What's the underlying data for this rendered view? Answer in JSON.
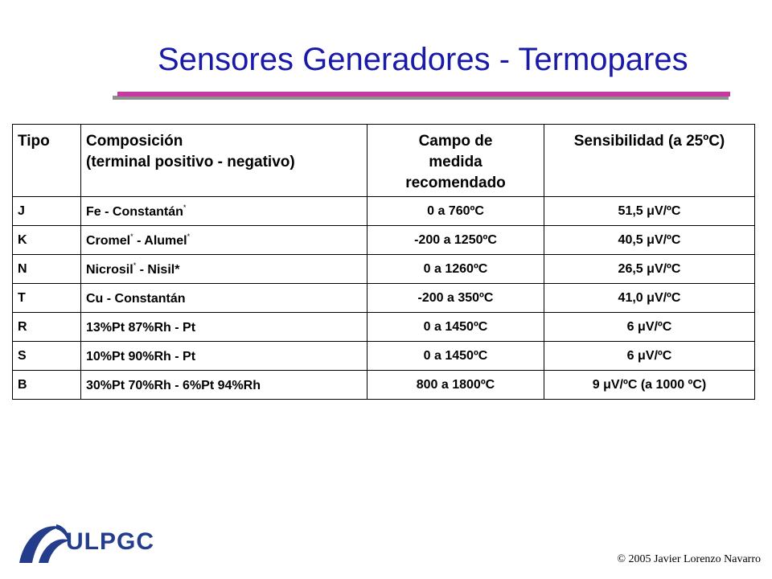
{
  "title": "Sensores Generadores - Termopares",
  "colors": {
    "title": "#1a1aa8",
    "underline": "#c63aa0",
    "underline_shadow": "#8f8f8f",
    "logo": "#233c8c"
  },
  "table": {
    "headers": {
      "tipo": "Tipo",
      "comp_line1": "Composición",
      "comp_line2": "(terminal positivo - negativo)",
      "campo_line1": "Campo de",
      "campo_line2": "medida",
      "campo_line3": "recomendado",
      "sens": "Sensibilidad (a 25ºC)"
    },
    "rows": [
      {
        "tipo": "J",
        "comp_a": "Fe - Constantán",
        "sup_a": "*",
        "comp_b": "",
        "sup_b": "",
        "comp_c": "",
        "campo": "0 a 760ºC",
        "sens_num": "51,5 ",
        "sens_mu": "μ",
        "sens_unit": "V/ºC",
        "sens_extra": ""
      },
      {
        "tipo": "K",
        "comp_a": "Cromel",
        "sup_a": "*",
        "comp_b": " - Alumel",
        "sup_b": "*",
        "comp_c": "",
        "campo": "-200 a 1250ºC",
        "sens_num": "40,5 ",
        "sens_mu": "μ",
        "sens_unit": "V/ºC",
        "sens_extra": ""
      },
      {
        "tipo": "N",
        "comp_a": "Nicrosil",
        "sup_a": "*",
        "comp_b": " - Nisil*",
        "sup_b": "",
        "comp_c": "",
        "campo": "0 a 1260ºC",
        "sens_num": "26,5 ",
        "sens_mu": "μ",
        "sens_unit": "V/ºC",
        "sens_extra": ""
      },
      {
        "tipo": "T",
        "comp_a": "Cu - Constantán",
        "sup_a": "",
        "comp_b": "",
        "sup_b": "",
        "comp_c": "",
        "campo": "-200 a 350ºC",
        "sens_num": "41,0 ",
        "sens_mu": "μ",
        "sens_unit": "V/ºC",
        "sens_extra": ""
      },
      {
        "tipo": "R",
        "comp_a": "13%Pt 87%Rh - Pt",
        "sup_a": "",
        "comp_b": "",
        "sup_b": "",
        "comp_c": "",
        "campo": "0 a 1450ºC",
        "sens_num": "6 ",
        "sens_mu": "μ",
        "sens_unit": "V/ºC",
        "sens_extra": ""
      },
      {
        "tipo": "S",
        "comp_a": "10%Pt 90%Rh - Pt",
        "sup_a": "",
        "comp_b": "",
        "sup_b": "",
        "comp_c": "",
        "campo": "0 a 1450ºC",
        "sens_num": "6 ",
        "sens_mu": "μ",
        "sens_unit": "V/ºC",
        "sens_extra": ""
      },
      {
        "tipo": "B",
        "comp_a": "30%Pt 70%Rh - 6%Pt 94%Rh",
        "sup_a": "",
        "comp_b": "",
        "sup_b": "",
        "comp_c": "",
        "campo": "800 a 1800ºC",
        "sens_num": "9 ",
        "sens_mu": "μ",
        "sens_unit": "V/ºC",
        "sens_extra": " (a 1000 ºC)"
      }
    ]
  },
  "logo": {
    "icon": "ulpgc-swirl-icon",
    "text": "ULPGC"
  },
  "copyright": "© 2005 Javier Lorenzo Navarro"
}
